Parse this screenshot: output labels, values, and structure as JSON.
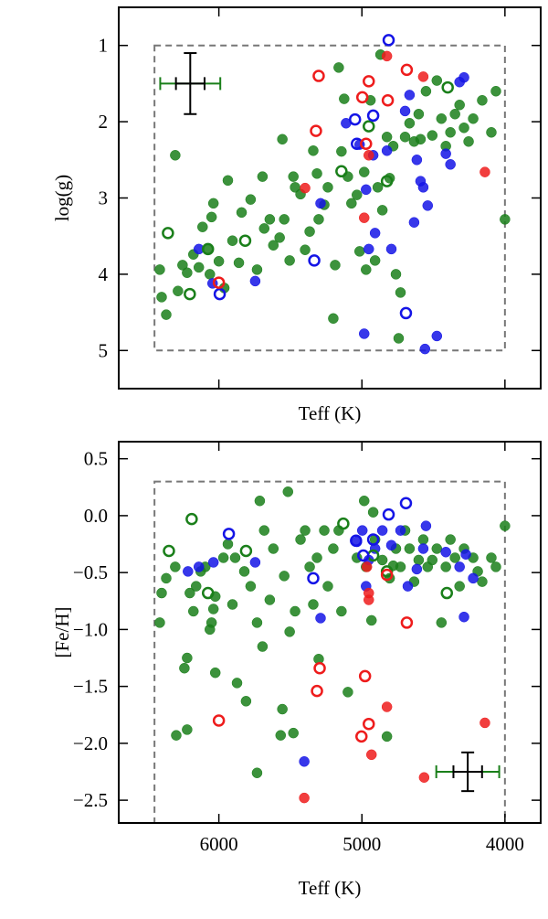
{
  "chart_data": [
    {
      "type": "scatter",
      "xlabel": "Teff (K)",
      "ylabel": "log(g)",
      "show_xticklabels": false,
      "xlim": [
        6700,
        3750
      ],
      "ylim": [
        5.5,
        0.5
      ],
      "xticks": [
        6000,
        5000,
        4000
      ],
      "yticks": [
        1,
        2,
        3,
        4,
        5
      ],
      "box": {
        "x": [
          6450,
          4000
        ],
        "y": [
          1,
          5
        ]
      },
      "errorbars": [
        {
          "x": 6200,
          "y": 1.5,
          "xerr": 210,
          "color": "#1a7f1a"
        },
        {
          "x": 6200,
          "y": 1.5,
          "xerr": 100,
          "yerr": 0.4,
          "color": "#000000"
        }
      ],
      "series": [
        {
          "color": "#1a7f1a",
          "filled": true,
          "x": [
            6413,
            6400,
            6368,
            6305,
            6286,
            6254,
            6222,
            6178,
            6140,
            6114,
            6076,
            6063,
            6051,
            6038,
            6000,
            5962,
            5937,
            5905,
            5860,
            5841,
            5778,
            5733,
            5695,
            5683,
            5644,
            5619,
            5575,
            5556,
            5543,
            5505,
            5479,
            5467,
            5429,
            5397,
            5365,
            5340,
            5314,
            5302,
            5263,
            5238,
            5200,
            5187,
            5162,
            5143,
            5124,
            5098,
            5073,
            5035,
            5016,
            4984,
            4971,
            4940,
            4908,
            4889,
            4870,
            4857,
            4825,
            4806,
            4781,
            4762,
            4730,
            4743,
            4698,
            4667,
            4635,
            4603,
            4590,
            4552,
            4508,
            4476,
            4444,
            4413,
            4381,
            4349,
            4317,
            4286,
            4254,
            4222,
            4159,
            4095,
            4063,
            4000
          ],
          "values": [
            3.94,
            4.3,
            4.53,
            2.44,
            4.22,
            3.88,
            3.98,
            3.74,
            3.91,
            3.38,
            3.67,
            4.0,
            3.25,
            3.07,
            3.83,
            4.18,
            2.77,
            3.56,
            3.85,
            3.19,
            3.02,
            3.94,
            2.72,
            3.4,
            3.28,
            3.62,
            3.52,
            2.23,
            3.28,
            3.82,
            2.72,
            2.86,
            2.95,
            3.68,
            3.44,
            2.38,
            2.68,
            3.28,
            3.09,
            2.86,
            4.58,
            3.88,
            1.29,
            2.39,
            1.7,
            2.72,
            3.07,
            2.96,
            3.7,
            2.66,
            3.94,
            1.72,
            3.82,
            2.86,
            1.12,
            3.16,
            2.2,
            2.74,
            2.32,
            4.0,
            4.24,
            4.84,
            2.2,
            2.02,
            2.26,
            1.9,
            2.23,
            1.6,
            2.18,
            1.46,
            1.96,
            2.32,
            2.14,
            1.9,
            1.78,
            2.08,
            2.26,
            1.96,
            1.72,
            2.14,
            1.6,
            3.28
          ]
        },
        {
          "color": "#1414e6",
          "filled": true,
          "x": [
            6140,
            6044,
            5746,
            5289,
            5111,
            5016,
            4971,
            4952,
            4921,
            4908,
            4825,
            4794,
            4698,
            4667,
            4616,
            4590,
            4571,
            4540,
            4413,
            4635,
            4381,
            4317,
            4286,
            4476,
            4559,
            4984
          ],
          "values": [
            3.67,
            4.12,
            4.09,
            3.07,
            2.02,
            2.3,
            2.89,
            3.67,
            2.44,
            3.46,
            2.38,
            3.67,
            1.86,
            1.65,
            2.5,
            2.78,
            2.86,
            3.1,
            2.42,
            3.32,
            2.56,
            1.48,
            1.42,
            4.81,
            4.98,
            4.78
          ]
        },
        {
          "color": "#ee1c1c",
          "filled": true,
          "x": [
            5397,
            4984,
            4952,
            4825,
            4571,
            4140
          ],
          "values": [
            2.87,
            3.26,
            2.44,
            1.14,
            1.41,
            2.66
          ]
        },
        {
          "color": "#1a7f1a",
          "filled": false,
          "x": [
            6356,
            6203,
            6076,
            5816,
            5143,
            4952,
            4825,
            4400
          ],
          "values": [
            3.46,
            4.26,
            3.67,
            3.56,
            2.65,
            2.06,
            2.78,
            1.55
          ]
        },
        {
          "color": "#1414e6",
          "filled": false,
          "x": [
            5994,
            5333,
            5048,
            5035,
            4921,
            4813,
            4692
          ],
          "values": [
            4.26,
            3.82,
            1.97,
            2.29,
            1.92,
            0.93,
            4.51
          ]
        },
        {
          "color": "#ee1c1c",
          "filled": false,
          "x": [
            6000,
            5302,
            5321,
            4997,
            4952,
            4971,
            4819,
            4686
          ],
          "values": [
            4.11,
            1.4,
            2.12,
            1.68,
            1.47,
            2.29,
            1.72,
            1.32
          ]
        }
      ]
    },
    {
      "type": "scatter",
      "xlabel": "Teff (K)",
      "ylabel": "[Fe/H]",
      "show_xticklabels": true,
      "xlim": [
        6700,
        3750
      ],
      "ylim": [
        -2.7,
        0.65
      ],
      "xticks": [
        6000,
        5000,
        4000
      ],
      "yticks": [
        0.5,
        {
          "value": 0,
          "label": "0.0"
        },
        {
          "value": -0.5,
          "label": "−0.5"
        },
        {
          "value": -1,
          "label": "−1.0"
        },
        {
          "value": -1.5,
          "label": "−1.5"
        },
        {
          "value": -2,
          "label": "−2.0"
        },
        {
          "value": -2.5,
          "label": "−2.5"
        }
      ],
      "box": {
        "x": [
          6450,
          4000
        ],
        "y": [
          -2.7,
          0.3
        ]
      },
      "errorbars": [
        {
          "x": 4260,
          "y": -2.25,
          "xerr": 220,
          "color": "#1a7f1a"
        },
        {
          "x": 4260,
          "y": -2.25,
          "xerr": 100,
          "yerr": 0.17,
          "color": "#000000"
        }
      ],
      "series": [
        {
          "color": "#1a7f1a",
          "filled": true,
          "x": [
            6413,
            6400,
            6368,
            6305,
            6298,
            6241,
            6222,
            6222,
            6203,
            6178,
            6159,
            6127,
            6095,
            6063,
            6051,
            6038,
            6025,
            6025,
            5968,
            5937,
            5905,
            5886,
            5873,
            5822,
            5810,
            5778,
            5733,
            5714,
            5695,
            5683,
            5644,
            5619,
            5568,
            5556,
            5543,
            5517,
            5505,
            5479,
            5467,
            5429,
            5397,
            5365,
            5340,
            5314,
            5302,
            5263,
            5238,
            5200,
            5162,
            5143,
            5098,
            5035,
            4984,
            4971,
            4933,
            4921,
            4908,
            4857,
            4825,
            4806,
            4781,
            4762,
            4730,
            4698,
            4667,
            4635,
            4603,
            4571,
            4540,
            4508,
            4476,
            4444,
            4413,
            4381,
            4349,
            4317,
            4286,
            4222,
            4190,
            4159,
            4095,
            4063,
            4000,
            5733
          ],
          "values": [
            -0.94,
            -0.68,
            -0.55,
            -0.45,
            -1.93,
            -1.34,
            -1.25,
            -1.88,
            -0.68,
            -0.84,
            -0.62,
            -0.49,
            -0.45,
            -1.0,
            -0.94,
            -0.82,
            -0.71,
            -1.38,
            -0.37,
            -0.25,
            -0.78,
            -0.37,
            -1.47,
            -0.49,
            -1.63,
            -0.62,
            -0.94,
            0.13,
            -1.15,
            -0.13,
            -0.74,
            -0.29,
            -1.93,
            -1.7,
            -0.53,
            0.21,
            -1.02,
            -1.91,
            -0.84,
            -0.21,
            -0.13,
            -0.45,
            -0.78,
            -0.37,
            -1.26,
            -0.13,
            -0.62,
            -0.29,
            -0.13,
            -0.84,
            -1.55,
            -0.37,
            0.13,
            -0.45,
            -0.92,
            0.03,
            -0.21,
            -0.39,
            -1.94,
            -0.55,
            -0.44,
            -0.29,
            -0.45,
            -0.13,
            -0.29,
            -0.58,
            -0.39,
            -0.21,
            -0.45,
            -0.39,
            -0.29,
            -0.94,
            -0.45,
            -0.21,
            -0.37,
            -0.62,
            -0.29,
            -0.37,
            -0.49,
            -0.58,
            -0.37,
            -0.45,
            -0.09,
            -2.26
          ]
        },
        {
          "color": "#1414e6",
          "filled": true,
          "x": [
            6216,
            6140,
            6038,
            5746,
            5289,
            5403,
            5035,
            4997,
            4971,
            4952,
            4908,
            4857,
            4794,
            4730,
            4679,
            4616,
            4571,
            4552,
            4413,
            4317,
            4273,
            4286,
            4222
          ],
          "values": [
            -0.49,
            -0.45,
            -0.41,
            -0.41,
            -0.9,
            -2.16,
            -0.23,
            -0.13,
            -0.62,
            -0.39,
            -0.29,
            -0.13,
            -0.26,
            -0.13,
            -0.62,
            -0.47,
            -0.29,
            -0.09,
            -0.32,
            -0.45,
            -0.34,
            -0.89,
            -0.55
          ]
        },
        {
          "color": "#ee1c1c",
          "filled": true,
          "x": [
            4965,
            4952,
            5403,
            4933,
            4825,
            4565,
            4140,
            4952
          ],
          "values": [
            -0.45,
            -0.74,
            -2.48,
            -2.1,
            -1.68,
            -2.3,
            -1.82,
            -0.68
          ]
        },
        {
          "color": "#1a7f1a",
          "filled": false,
          "x": [
            6349,
            6190,
            6076,
            5810,
            5130,
            4921,
            4825,
            4406
          ],
          "values": [
            -0.31,
            -0.03,
            -0.68,
            -0.31,
            -0.07,
            -0.35,
            -0.49,
            -0.68
          ]
        },
        {
          "color": "#1414e6",
          "filled": false,
          "x": [
            5930,
            5340,
            5041,
            4990,
            4921,
            4813,
            4692
          ],
          "values": [
            -0.16,
            -0.55,
            -0.22,
            -0.35,
            -0.21,
            0.01,
            0.11
          ]
        },
        {
          "color": "#ee1c1c",
          "filled": false,
          "x": [
            6000,
            5295,
            5314,
            4978,
            4952,
            5003,
            4686,
            4825
          ],
          "values": [
            -1.8,
            -1.34,
            -1.54,
            -1.41,
            -1.83,
            -1.94,
            -0.94,
            -0.52
          ]
        }
      ]
    }
  ]
}
